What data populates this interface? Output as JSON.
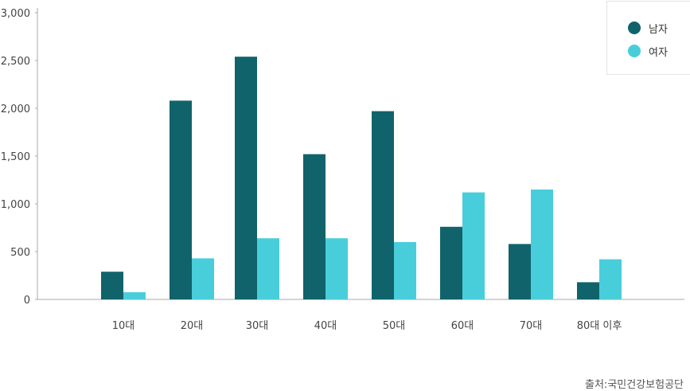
{
  "chart_data": {
    "type": "bar",
    "categories": [
      "10대",
      "20대",
      "30대",
      "40대",
      "50대",
      "60대",
      "70대",
      "80대 이후"
    ],
    "series": [
      {
        "name": "남자",
        "color": "#10636b",
        "values": [
          290,
          2080,
          2540,
          1520,
          1970,
          760,
          580,
          180
        ]
      },
      {
        "name": "여자",
        "color": "#48cedb",
        "values": [
          75,
          430,
          640,
          640,
          600,
          1120,
          1150,
          420
        ]
      }
    ],
    "yticks": [
      0,
      500,
      1000,
      1500,
      2000,
      2500,
      3000
    ],
    "ytick_labels": [
      "0",
      "500",
      "1,000",
      "1,500",
      "2,000",
      "2,500",
      "3,000"
    ],
    "ylim": [
      0,
      3000
    ],
    "grid": false,
    "legend_position": "top-right"
  },
  "source_text": "출처:국민건강보험공단"
}
